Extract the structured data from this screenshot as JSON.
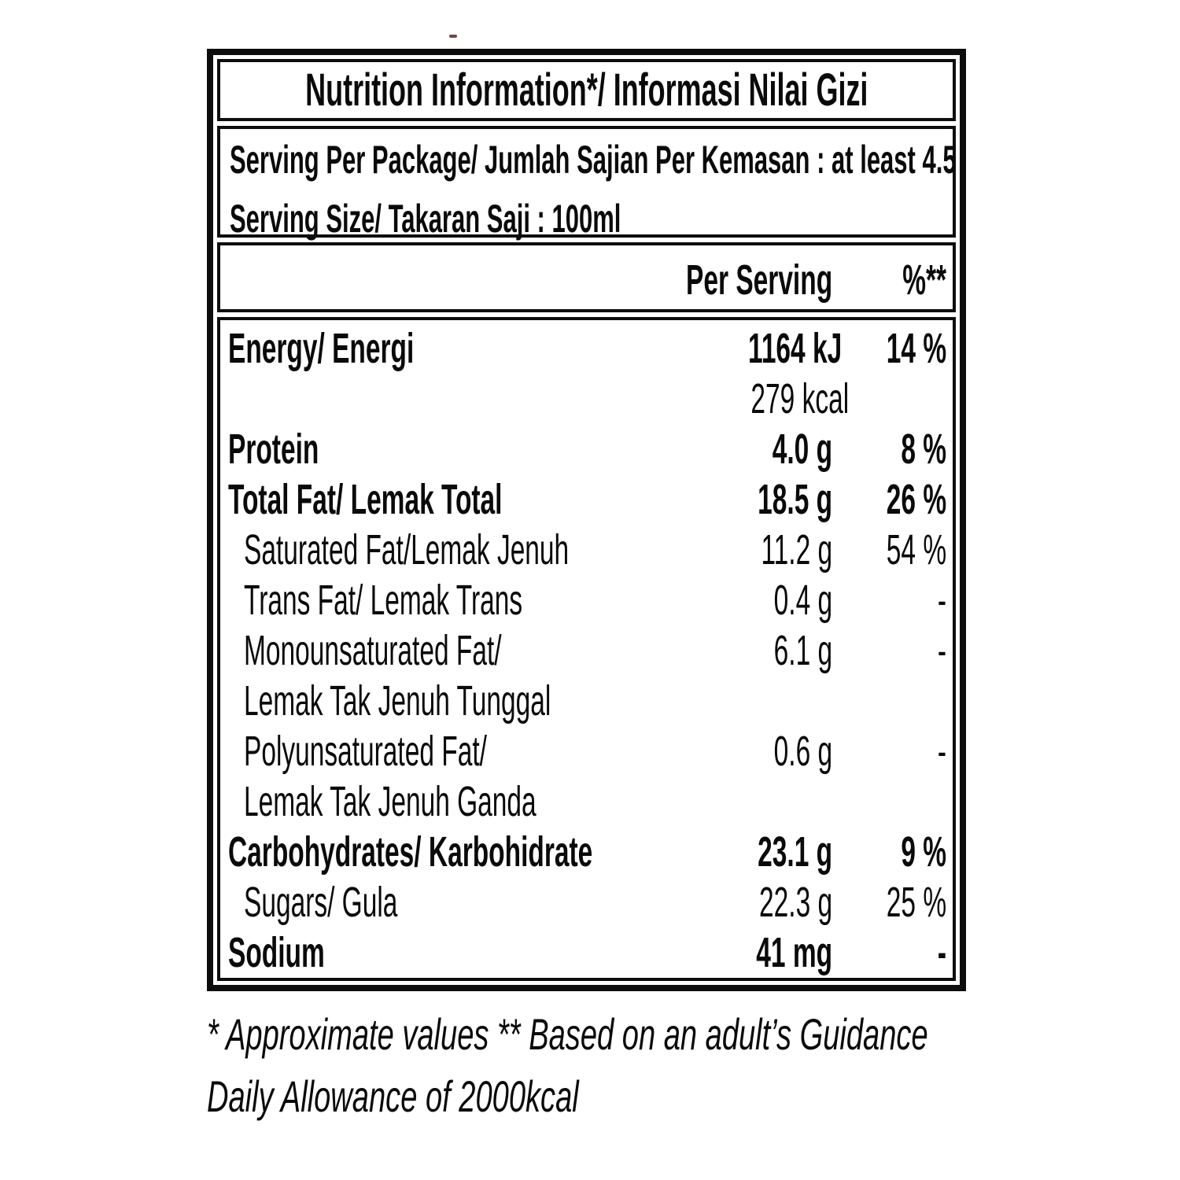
{
  "title": "Nutrition Information*/ Informasi Nilai Gizi",
  "serving": {
    "line1": "Serving Per Package/ Jumlah Sajian Per Kemasan :  at least 4.5",
    "line2": "Serving Size/ Takaran Saji : 100ml"
  },
  "columns": {
    "per_serving": "Per Serving",
    "percent": "%**"
  },
  "rows": [
    {
      "label": "Energy/ Energi",
      "value": "1164 kJ",
      "pct": "14 %"
    },
    {
      "label": "",
      "value": "279 kcal",
      "pct": ""
    },
    {
      "label": "Protein",
      "value": "4.0 g",
      "pct": "8 %"
    },
    {
      "label": "Total Fat/ Lemak Total",
      "value": "18.5 g",
      "pct": "26 %"
    },
    {
      "label": "Saturated Fat/Lemak Jenuh",
      "value": "11.2 g",
      "pct": "54 %"
    },
    {
      "label": "Trans Fat/ Lemak Trans",
      "value": "0.4 g",
      "pct": "-"
    },
    {
      "label": "Monounsaturated Fat/",
      "value": "6.1 g",
      "pct": "-"
    },
    {
      "label": "Lemak Tak Jenuh Tunggal",
      "value": "",
      "pct": ""
    },
    {
      "label": "Polyunsaturated Fat/",
      "value": "0.6 g",
      "pct": "-"
    },
    {
      "label": "Lemak Tak Jenuh Ganda",
      "value": "",
      "pct": ""
    },
    {
      "label": "Carbohydrates/ Karbohidrate",
      "value": "23.1 g",
      "pct": "9 %"
    },
    {
      "label": "Sugars/ Gula",
      "value": "22.3 g",
      "pct": "25 %"
    },
    {
      "label": "Sodium",
      "value": "41 mg",
      "pct": "-"
    }
  ],
  "footnotes": {
    "line1": "* Approximate values  ** Based on an adult’s Guidance",
    "line2": "Daily Allowance of 2000kcal"
  },
  "colors": {
    "ink": "#0d0d0d",
    "background": "#ffffff"
  }
}
